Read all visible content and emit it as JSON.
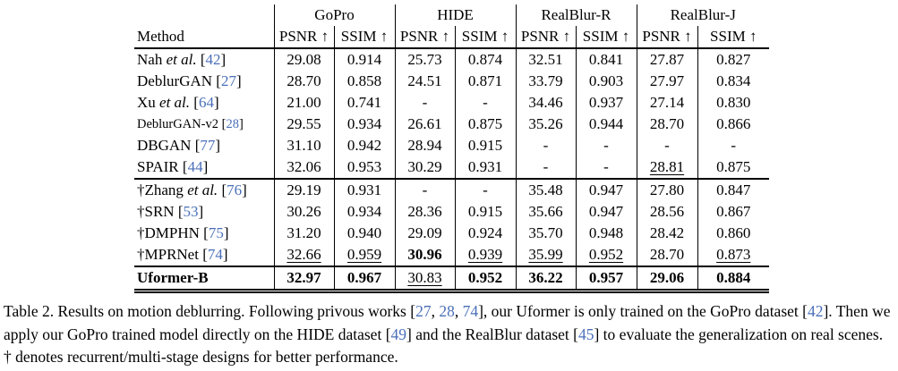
{
  "colors": {
    "citation_blue": "#4a6fb8",
    "text": "#000000",
    "border": "#000000",
    "background": "#ffffff"
  },
  "table": {
    "method_header": "Method",
    "col_groups": [
      "GoPro",
      "HIDE",
      "RealBlur-R",
      "RealBlur-J"
    ],
    "metric_label_psnr": "PSNR",
    "metric_label_ssim": "SSIM",
    "arrow": "↑",
    "rows": [
      {
        "method": {
          "pre": "Nah ",
          "it": "et al.",
          "cite": "42"
        },
        "cells": [
          {
            "t": "29.08"
          },
          {
            "t": "0.914"
          },
          {
            "t": "25.73"
          },
          {
            "t": "0.874"
          },
          {
            "t": "32.51"
          },
          {
            "t": "0.841"
          },
          {
            "t": "27.87"
          },
          {
            "t": "0.827"
          }
        ]
      },
      {
        "method": {
          "pre": "DeblurGAN",
          "cite": "27"
        },
        "cells": [
          {
            "t": "28.70"
          },
          {
            "t": "0.858"
          },
          {
            "t": "24.51"
          },
          {
            "t": "0.871"
          },
          {
            "t": "33.79"
          },
          {
            "t": "0.903"
          },
          {
            "t": "27.97"
          },
          {
            "t": "0.834"
          }
        ]
      },
      {
        "method": {
          "pre": "Xu ",
          "it": "et al.",
          "cite": "64"
        },
        "cells": [
          {
            "t": "21.00"
          },
          {
            "t": "0.741"
          },
          {
            "t": "-"
          },
          {
            "t": "-"
          },
          {
            "t": "34.46"
          },
          {
            "t": "0.937"
          },
          {
            "t": "27.14"
          },
          {
            "t": "0.830"
          }
        ]
      },
      {
        "method": {
          "pre": "DeblurGAN-v2",
          "cite": "28",
          "small": true
        },
        "cells": [
          {
            "t": "29.55"
          },
          {
            "t": "0.934"
          },
          {
            "t": "26.61"
          },
          {
            "t": "0.875"
          },
          {
            "t": "35.26"
          },
          {
            "t": "0.944"
          },
          {
            "t": "28.70"
          },
          {
            "t": "0.866"
          }
        ]
      },
      {
        "method": {
          "pre": "DBGAN",
          "cite": "77"
        },
        "cells": [
          {
            "t": "31.10"
          },
          {
            "t": "0.942"
          },
          {
            "t": "28.94"
          },
          {
            "t": "0.915"
          },
          {
            "t": "-"
          },
          {
            "t": "-"
          },
          {
            "t": "-"
          },
          {
            "t": "-"
          }
        ]
      },
      {
        "method": {
          "pre": "SPAIR",
          "cite": "44"
        },
        "cells": [
          {
            "t": "32.06"
          },
          {
            "t": "0.953"
          },
          {
            "t": "30.29"
          },
          {
            "t": "0.931"
          },
          {
            "t": "-"
          },
          {
            "t": "-"
          },
          {
            "t": "28.81",
            "u": true
          },
          {
            "t": "0.875"
          }
        ]
      },
      {
        "method": {
          "pre": "†Zhang ",
          "it": "et al.",
          "cite": "76"
        },
        "section": true,
        "cells": [
          {
            "t": "29.19"
          },
          {
            "t": "0.931"
          },
          {
            "t": "-"
          },
          {
            "t": "-"
          },
          {
            "t": "35.48"
          },
          {
            "t": "0.947"
          },
          {
            "t": "27.80"
          },
          {
            "t": "0.847"
          }
        ]
      },
      {
        "method": {
          "pre": "†SRN",
          "cite": "53"
        },
        "cells": [
          {
            "t": "30.26"
          },
          {
            "t": "0.934"
          },
          {
            "t": "28.36"
          },
          {
            "t": "0.915"
          },
          {
            "t": "35.66"
          },
          {
            "t": "0.947"
          },
          {
            "t": "28.56"
          },
          {
            "t": "0.867"
          }
        ]
      },
      {
        "method": {
          "pre": "†DMPHN",
          "cite": "75"
        },
        "cells": [
          {
            "t": "31.20"
          },
          {
            "t": "0.940"
          },
          {
            "t": "29.09"
          },
          {
            "t": "0.924"
          },
          {
            "t": "35.70"
          },
          {
            "t": "0.948"
          },
          {
            "t": "28.42"
          },
          {
            "t": "0.860"
          }
        ]
      },
      {
        "method": {
          "pre": "†MPRNet",
          "cite": "74"
        },
        "cells": [
          {
            "t": "32.66",
            "u": true
          },
          {
            "t": "0.959",
            "u": true
          },
          {
            "t": "30.96",
            "b": true
          },
          {
            "t": "0.939",
            "u": true
          },
          {
            "t": "35.99",
            "u": true
          },
          {
            "t": "0.952",
            "u": true
          },
          {
            "t": "28.70"
          },
          {
            "t": "0.873",
            "u": true
          }
        ]
      },
      {
        "method": {
          "pre": "Uformer-B",
          "bold": true
        },
        "section": true,
        "last": true,
        "cells": [
          {
            "t": "32.97",
            "b": true
          },
          {
            "t": "0.967",
            "b": true
          },
          {
            "t": "30.83",
            "u": true
          },
          {
            "t": "0.952",
            "b": true
          },
          {
            "t": "36.22",
            "b": true
          },
          {
            "t": "0.957",
            "b": true
          },
          {
            "t": "29.06",
            "b": true
          },
          {
            "t": "0.884",
            "b": true
          }
        ]
      }
    ]
  },
  "caption": {
    "lines": [
      [
        {
          "t": "Table 2. Results on motion deblurring. Following privous works ["
        },
        {
          "t": "27",
          "c": true
        },
        {
          "t": ", "
        },
        {
          "t": "28",
          "c": true
        },
        {
          "t": ", "
        },
        {
          "t": "74",
          "c": true
        },
        {
          "t": "], our Uformer is only trained on the GoPro dataset ["
        },
        {
          "t": "42",
          "c": true
        },
        {
          "t": "]. Then we"
        }
      ],
      [
        {
          "t": "apply our GoPro trained model directly on the HIDE dataset ["
        },
        {
          "t": "49",
          "c": true
        },
        {
          "t": "] and the RealBlur dataset ["
        },
        {
          "t": "45",
          "c": true
        },
        {
          "t": "] to evaluate the generalization on real scenes."
        }
      ],
      [
        {
          "t": "† denotes recurrent/multi-stage designs for better performance."
        }
      ]
    ]
  }
}
